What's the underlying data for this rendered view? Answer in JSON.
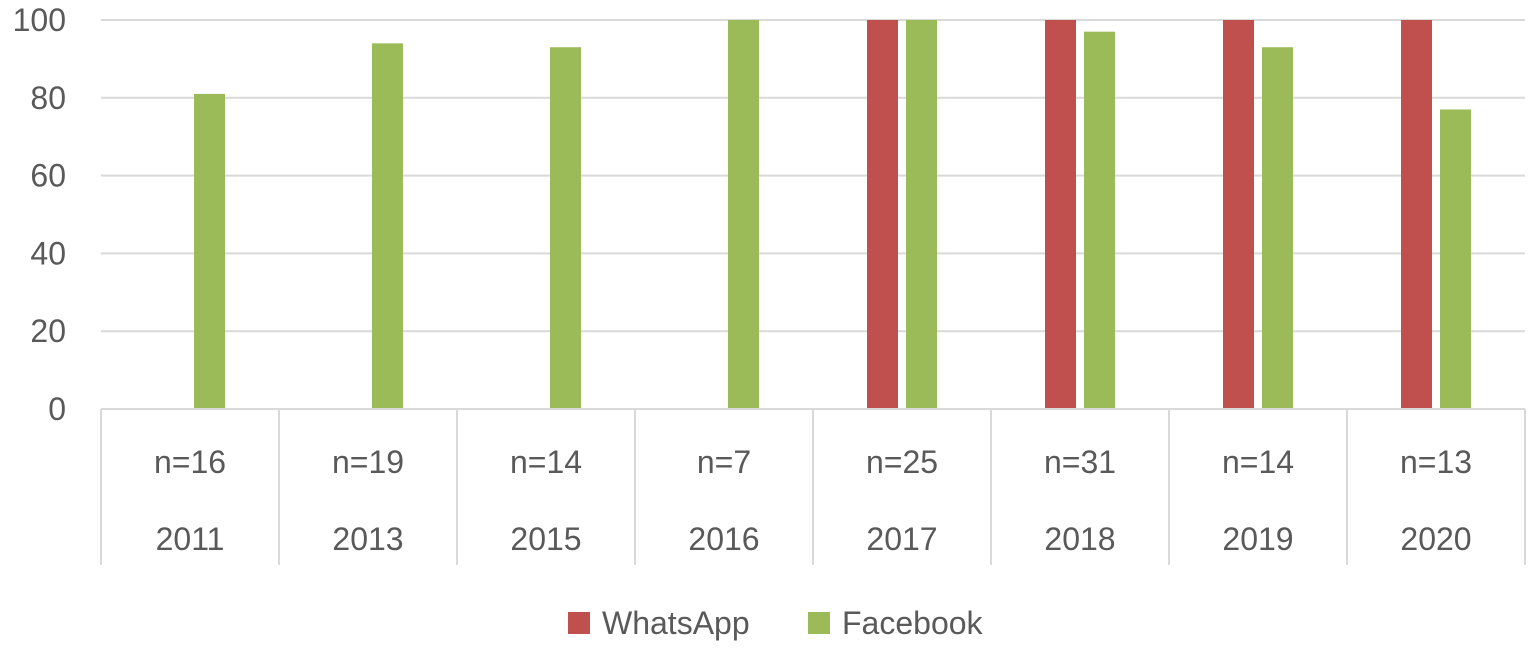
{
  "chart_data": {
    "type": "bar",
    "categories": [
      {
        "n": "n=16",
        "year": "2011"
      },
      {
        "n": "n=19",
        "year": "2013"
      },
      {
        "n": "n=14",
        "year": "2015"
      },
      {
        "n": "n=7",
        "year": "2016"
      },
      {
        "n": "n=25",
        "year": "2017"
      },
      {
        "n": "n=31",
        "year": "2018"
      },
      {
        "n": "n=14",
        "year": "2019"
      },
      {
        "n": "n=13",
        "year": "2020"
      }
    ],
    "series": [
      {
        "name": "WhatsApp",
        "color": "#c0504d",
        "values": [
          null,
          null,
          null,
          null,
          100,
          100,
          100,
          100
        ]
      },
      {
        "name": "Facebook",
        "color": "#9bbb59",
        "values": [
          81,
          94,
          93,
          100,
          100,
          97,
          93,
          77
        ]
      }
    ],
    "ylim": [
      0,
      100
    ],
    "yticks": [
      "0",
      "20",
      "40",
      "60",
      "80",
      "100"
    ],
    "grid": true,
    "legend_position": "bottom"
  }
}
